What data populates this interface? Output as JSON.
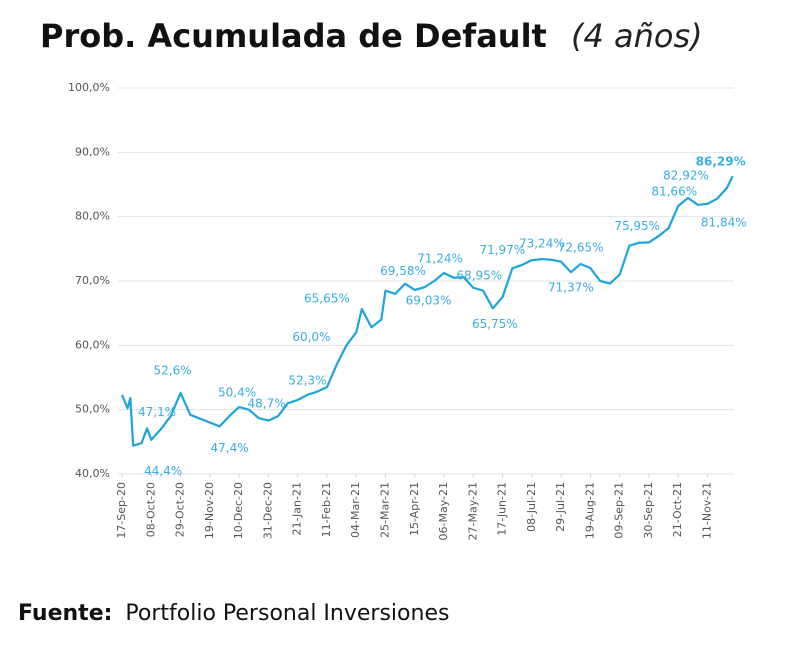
{
  "chart_data": {
    "type": "line",
    "title": "Prob. Acumulada de Default",
    "subtitle": "(4 años)",
    "color": "#1da4dd",
    "label_color": "#3aaee3",
    "grid": true,
    "ylim": [
      40,
      100
    ],
    "yticks": [
      {
        "value": 40,
        "label": "40,0%"
      },
      {
        "value": 50,
        "label": "50,0%"
      },
      {
        "value": 60,
        "label": "60,0%"
      },
      {
        "value": 70,
        "label": "70,0%"
      },
      {
        "value": 80,
        "label": "80,0%"
      },
      {
        "value": 90,
        "label": "90,0%"
      },
      {
        "value": 100,
        "label": "100,0%"
      }
    ],
    "xlim": [
      "2020-09-17",
      "2021-11-30"
    ],
    "xticks": [
      {
        "value": "2020-09-17",
        "label": "17-Sep-20"
      },
      {
        "value": "2020-10-08",
        "label": "08-Oct-20"
      },
      {
        "value": "2020-10-29",
        "label": "29-Oct-20"
      },
      {
        "value": "2020-11-19",
        "label": "19-Nov-20"
      },
      {
        "value": "2020-12-10",
        "label": "10-Dec-20"
      },
      {
        "value": "2020-12-31",
        "label": "31-Dec-20"
      },
      {
        "value": "2021-01-21",
        "label": "21-Jan-21"
      },
      {
        "value": "2021-02-11",
        "label": "11-Feb-21"
      },
      {
        "value": "2021-03-04",
        "label": "04-Mar-21"
      },
      {
        "value": "2021-03-25",
        "label": "25-Mar-21"
      },
      {
        "value": "2021-04-15",
        "label": "15-Apr-21"
      },
      {
        "value": "2021-05-06",
        "label": "06-May-21"
      },
      {
        "value": "2021-05-27",
        "label": "27-May-21"
      },
      {
        "value": "2021-06-17",
        "label": "17-Jun-21"
      },
      {
        "value": "2021-07-08",
        "label": "08-Jul-21"
      },
      {
        "value": "2021-07-29",
        "label": "29-Jul-21"
      },
      {
        "value": "2021-08-19",
        "label": "19-Aug-21"
      },
      {
        "value": "2021-09-09",
        "label": "09-Sep-21"
      },
      {
        "value": "2021-09-30",
        "label": "30-Sep-21"
      },
      {
        "value": "2021-10-21",
        "label": "21-Oct-21"
      },
      {
        "value": "2021-11-11",
        "label": "11-Nov-21"
      }
    ],
    "x": [
      "2020-09-17",
      "2020-09-21",
      "2020-09-23",
      "2020-09-25",
      "2020-10-01",
      "2020-10-05",
      "2020-10-08",
      "2020-10-15",
      "2020-10-22",
      "2020-10-29",
      "2020-11-05",
      "2020-11-12",
      "2020-11-19",
      "2020-11-26",
      "2020-12-03",
      "2020-12-10",
      "2020-12-17",
      "2020-12-24",
      "2020-12-31",
      "2021-01-07",
      "2021-01-14",
      "2021-01-21",
      "2021-01-28",
      "2021-02-04",
      "2021-02-11",
      "2021-02-18",
      "2021-02-25",
      "2021-03-04",
      "2021-03-08",
      "2021-03-15",
      "2021-03-22",
      "2021-03-25",
      "2021-04-01",
      "2021-04-08",
      "2021-04-15",
      "2021-04-22",
      "2021-04-29",
      "2021-05-06",
      "2021-05-13",
      "2021-05-20",
      "2021-05-27",
      "2021-06-03",
      "2021-06-10",
      "2021-06-17",
      "2021-06-24",
      "2021-07-01",
      "2021-07-08",
      "2021-07-15",
      "2021-07-22",
      "2021-07-29",
      "2021-08-05",
      "2021-08-12",
      "2021-08-19",
      "2021-08-26",
      "2021-09-02",
      "2021-09-09",
      "2021-09-16",
      "2021-09-23",
      "2021-09-30",
      "2021-10-07",
      "2021-10-14",
      "2021-10-21",
      "2021-10-28",
      "2021-11-04",
      "2021-11-11",
      "2021-11-18",
      "2021-11-25",
      "2021-11-29"
    ],
    "values": [
      52.3,
      50.2,
      51.8,
      44.4,
      44.8,
      47.1,
      45.3,
      47.0,
      49.0,
      52.6,
      49.2,
      48.6,
      48.0,
      47.4,
      49.0,
      50.4,
      50.0,
      48.7,
      48.3,
      49.0,
      51.0,
      51.5,
      52.3,
      52.8,
      53.5,
      57.0,
      60.0,
      62.0,
      65.65,
      62.8,
      64.0,
      68.5,
      68.0,
      69.58,
      68.6,
      69.03,
      70.0,
      71.24,
      70.5,
      70.6,
      68.95,
      68.5,
      65.75,
      67.5,
      71.97,
      72.5,
      73.24,
      73.4,
      73.3,
      73.0,
      71.37,
      72.65,
      72.0,
      70.0,
      69.6,
      71.0,
      75.5,
      75.95,
      76.0,
      77.0,
      78.2,
      81.66,
      82.92,
      81.84,
      82.0,
      82.8,
      84.5,
      86.29
    ],
    "value_labels": [
      null,
      null,
      null,
      "44,4%",
      null,
      "47,1%",
      null,
      null,
      null,
      "52,6%",
      null,
      null,
      null,
      "47,4%",
      null,
      "50,4%",
      null,
      "48,7%",
      null,
      null,
      null,
      null,
      "52,3%",
      null,
      null,
      null,
      "60,0%",
      null,
      "65,65%",
      null,
      null,
      null,
      null,
      "69,58%",
      null,
      "69,03%",
      null,
      "71,24%",
      null,
      null,
      "68,95%",
      null,
      "65,75%",
      null,
      "71,97%",
      null,
      "73,24%",
      null,
      null,
      null,
      "71,37%",
      "72,65%",
      null,
      null,
      null,
      null,
      null,
      "75,95%",
      null,
      null,
      null,
      "81,66%",
      "82,92%",
      "81,84%",
      null,
      null,
      null,
      "86,29%"
    ]
  },
  "footer": {
    "label": "Fuente:",
    "text": "Portfolio Personal Inversiones"
  }
}
